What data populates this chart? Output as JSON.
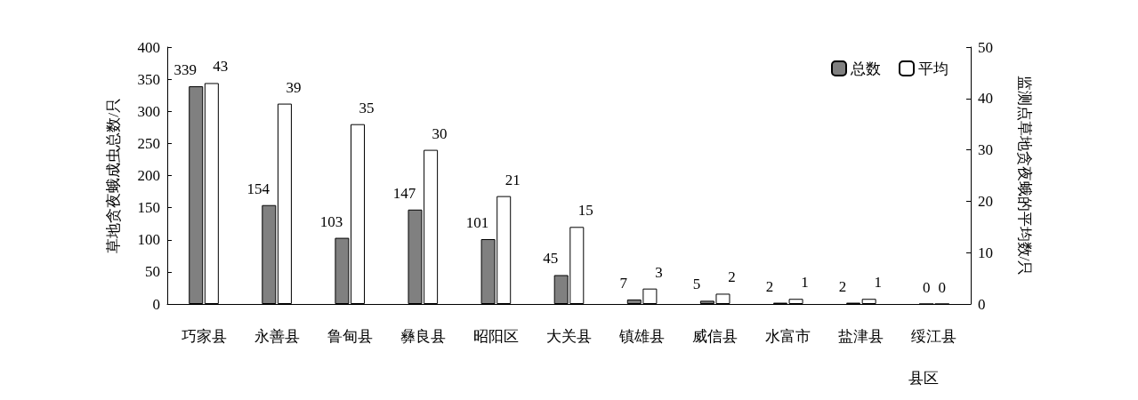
{
  "chart_data": {
    "type": "bar",
    "xlabel": "县区",
    "ylabel": "草地贪夜蛾成虫总数/只",
    "y2label": "监测点草地贪夜蛾的平均数/只",
    "categories": [
      "巧家县",
      "永善县",
      "鲁甸县",
      "彝良县",
      "昭阳区",
      "大关县",
      "镇雄县",
      "威信县",
      "水富市",
      "盐津县",
      "绥江县"
    ],
    "series": [
      {
        "name": "总数",
        "color": "#808080",
        "values": [
          339,
          154,
          103,
          147,
          101,
          45,
          7,
          5,
          2,
          2,
          0
        ]
      },
      {
        "name": "平均",
        "color": "#ffffff",
        "axis": "y2",
        "values": [
          43,
          39,
          35,
          30,
          21,
          15,
          3,
          2,
          1,
          1,
          0
        ]
      }
    ],
    "ylim": [
      0,
      400
    ],
    "yticks": [
      0,
      50,
      100,
      150,
      200,
      250,
      300,
      350,
      400
    ],
    "y2lim": [
      0,
      50
    ],
    "y2ticks": [
      0,
      10,
      20,
      30,
      40,
      50
    ],
    "data_labels": true,
    "grid": false,
    "legend": "top right"
  }
}
